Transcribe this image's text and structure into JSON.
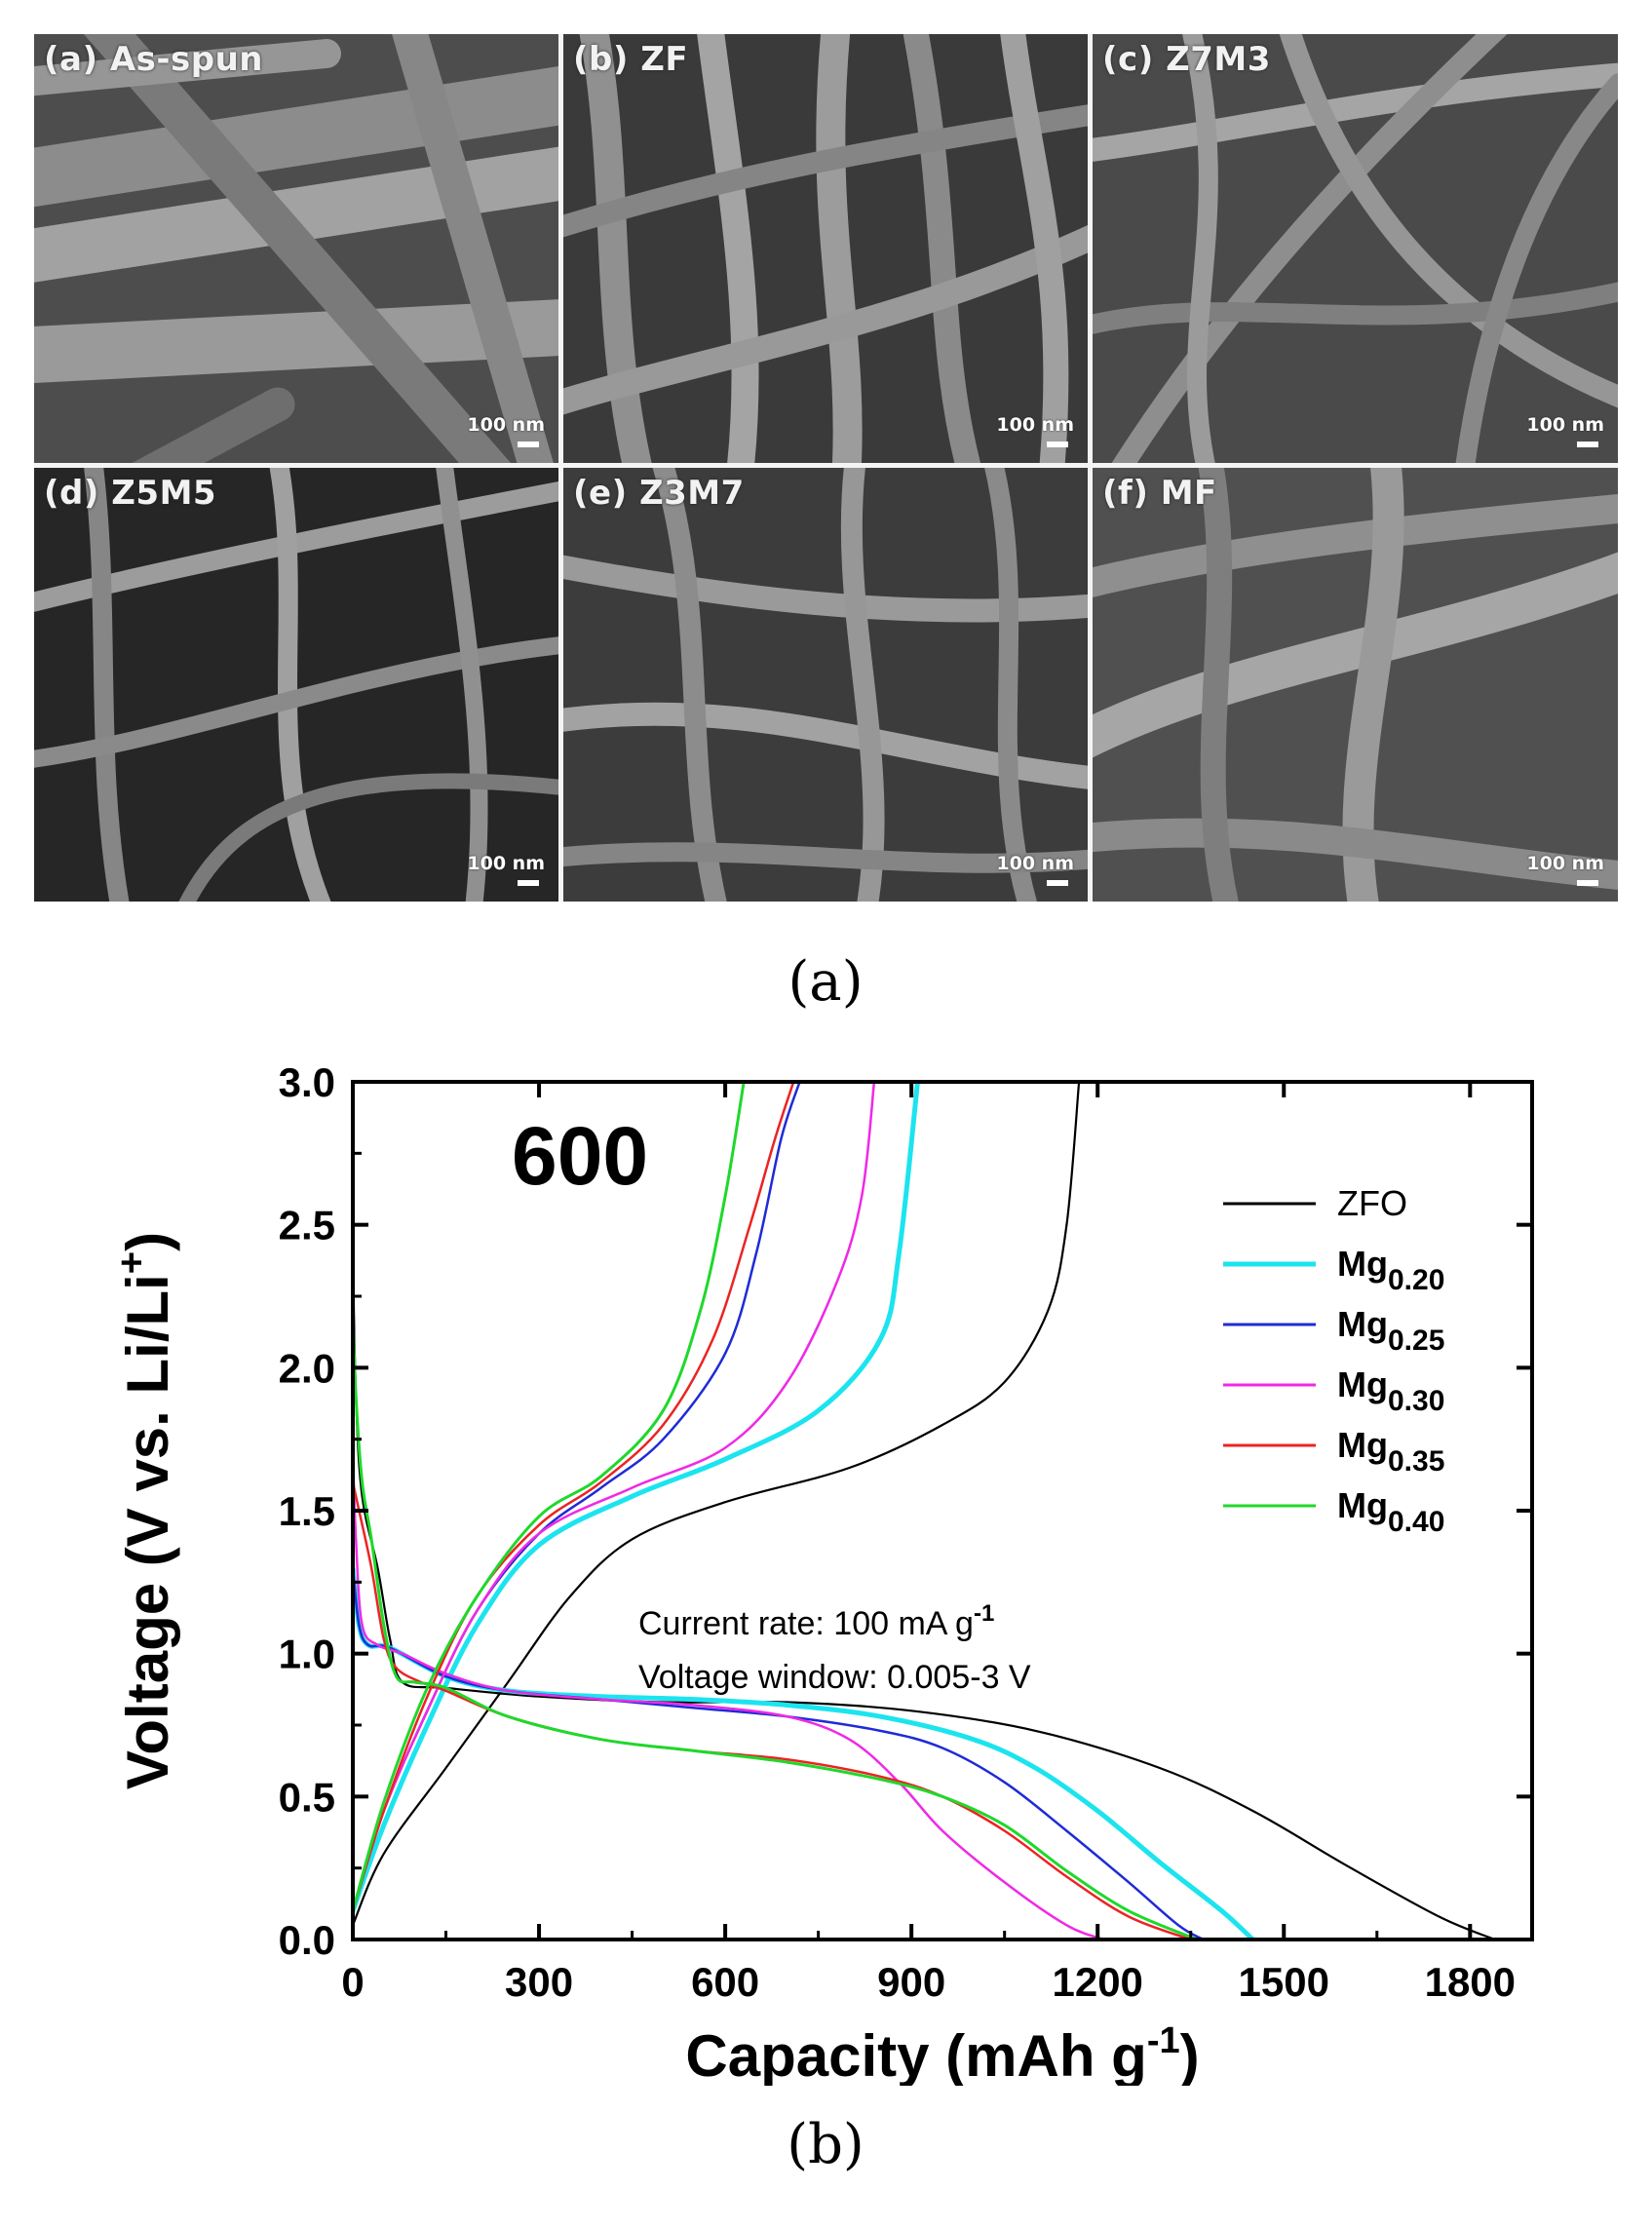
{
  "figure": {
    "caption_a": "(a)",
    "caption_b": "(b)"
  },
  "sem_panels": [
    {
      "label": "(a) As-spun",
      "scale": "100 nm"
    },
    {
      "label": "(b) ZF",
      "scale": "100 nm"
    },
    {
      "label": "(c) Z7M3",
      "scale": "100 nm"
    },
    {
      "label": "(d) Z5M5",
      "scale": "100 nm"
    },
    {
      "label": "(e) Z3M7",
      "scale": "100 nm"
    },
    {
      "label": "(f) MF",
      "scale": "100 nm"
    }
  ],
  "chart_data": {
    "type": "line",
    "title": "",
    "annotation_temperature": "600",
    "annotation_rate": "Current rate: 100 mA g",
    "annotation_rate_sup": "-1",
    "annotation_window": "Voltage window: 0.005-3 V",
    "xlabel": "Capacity (mAh g",
    "xlabel_sup": "-1",
    "xlabel_end": ")",
    "ylabel": "Voltage (V vs. Li/Li",
    "ylabel_sup": "+",
    "ylabel_end": ")",
    "xlim": [
      0,
      1900
    ],
    "ylim": [
      0,
      3.0
    ],
    "xticks": [
      0,
      300,
      600,
      900,
      1200,
      1500,
      1800
    ],
    "yticks": [
      0.0,
      0.5,
      1.0,
      1.5,
      2.0,
      2.5,
      3.0
    ],
    "legend_position": "right",
    "series": [
      {
        "name": "ZFO",
        "subscript": "",
        "color": "#000000",
        "width": 2.2,
        "discharge": [
          [
            0,
            2.4
          ],
          [
            5,
            1.9
          ],
          [
            15,
            1.55
          ],
          [
            40,
            1.3
          ],
          [
            60,
            1.05
          ],
          [
            80,
            0.9
          ],
          [
            150,
            0.88
          ],
          [
            300,
            0.85
          ],
          [
            500,
            0.83
          ],
          [
            700,
            0.83
          ],
          [
            900,
            0.8
          ],
          [
            1100,
            0.73
          ],
          [
            1300,
            0.6
          ],
          [
            1450,
            0.45
          ],
          [
            1600,
            0.26
          ],
          [
            1750,
            0.08
          ],
          [
            1840,
            0.0
          ]
        ],
        "charge": [
          [
            0,
            0.05
          ],
          [
            50,
            0.3
          ],
          [
            150,
            0.6
          ],
          [
            250,
            0.9
          ],
          [
            350,
            1.2
          ],
          [
            450,
            1.4
          ],
          [
            600,
            1.53
          ],
          [
            800,
            1.65
          ],
          [
            950,
            1.8
          ],
          [
            1050,
            1.95
          ],
          [
            1120,
            2.2
          ],
          [
            1150,
            2.5
          ],
          [
            1170,
            3.0
          ]
        ]
      },
      {
        "name": "Mg",
        "subscript": "0.20",
        "color": "#1ce4ef",
        "width": 5.0,
        "discharge": [
          [
            0,
            1.3
          ],
          [
            10,
            1.1
          ],
          [
            25,
            1.03
          ],
          [
            60,
            1.02
          ],
          [
            150,
            0.92
          ],
          [
            250,
            0.87
          ],
          [
            400,
            0.85
          ],
          [
            550,
            0.84
          ],
          [
            700,
            0.82
          ],
          [
            850,
            0.78
          ],
          [
            1000,
            0.7
          ],
          [
            1100,
            0.6
          ],
          [
            1200,
            0.45
          ],
          [
            1300,
            0.27
          ],
          [
            1400,
            0.1
          ],
          [
            1450,
            0.0
          ]
        ],
        "charge": [
          [
            0,
            0.1
          ],
          [
            50,
            0.4
          ],
          [
            120,
            0.75
          ],
          [
            200,
            1.1
          ],
          [
            300,
            1.38
          ],
          [
            450,
            1.55
          ],
          [
            600,
            1.68
          ],
          [
            750,
            1.85
          ],
          [
            850,
            2.1
          ],
          [
            880,
            2.4
          ],
          [
            910,
            3.0
          ]
        ]
      },
      {
        "name": "Mg",
        "subscript": "0.25",
        "color": "#1f2bd6",
        "width": 2.5,
        "discharge": [
          [
            0,
            1.3
          ],
          [
            10,
            1.1
          ],
          [
            25,
            1.03
          ],
          [
            60,
            1.02
          ],
          [
            150,
            0.92
          ],
          [
            250,
            0.87
          ],
          [
            400,
            0.84
          ],
          [
            550,
            0.81
          ],
          [
            700,
            0.78
          ],
          [
            850,
            0.73
          ],
          [
            950,
            0.67
          ],
          [
            1050,
            0.55
          ],
          [
            1150,
            0.38
          ],
          [
            1250,
            0.2
          ],
          [
            1330,
            0.05
          ],
          [
            1370,
            0.0
          ]
        ],
        "charge": [
          [
            0,
            0.1
          ],
          [
            50,
            0.45
          ],
          [
            120,
            0.8
          ],
          [
            200,
            1.15
          ],
          [
            300,
            1.42
          ],
          [
            400,
            1.58
          ],
          [
            500,
            1.75
          ],
          [
            600,
            2.05
          ],
          [
            650,
            2.4
          ],
          [
            690,
            2.8
          ],
          [
            720,
            3.0
          ]
        ]
      },
      {
        "name": "Mg",
        "subscript": "0.30",
        "color": "#ef29e6",
        "width": 2.5,
        "discharge": [
          [
            0,
            1.7
          ],
          [
            5,
            1.4
          ],
          [
            15,
            1.1
          ],
          [
            40,
            1.03
          ],
          [
            80,
            1.0
          ],
          [
            150,
            0.93
          ],
          [
            250,
            0.87
          ],
          [
            400,
            0.84
          ],
          [
            550,
            0.82
          ],
          [
            700,
            0.78
          ],
          [
            800,
            0.7
          ],
          [
            880,
            0.55
          ],
          [
            950,
            0.38
          ],
          [
            1050,
            0.2
          ],
          [
            1150,
            0.05
          ],
          [
            1210,
            0.0
          ]
        ],
        "charge": [
          [
            0,
            0.1
          ],
          [
            50,
            0.45
          ],
          [
            120,
            0.8
          ],
          [
            200,
            1.15
          ],
          [
            300,
            1.42
          ],
          [
            450,
            1.58
          ],
          [
            600,
            1.72
          ],
          [
            700,
            1.95
          ],
          [
            780,
            2.3
          ],
          [
            820,
            2.6
          ],
          [
            840,
            3.0
          ]
        ]
      },
      {
        "name": "Mg",
        "subscript": "0.35",
        "color": "#ec2323",
        "width": 2.5,
        "discharge": [
          [
            0,
            1.6
          ],
          [
            10,
            1.5
          ],
          [
            30,
            1.3
          ],
          [
            50,
            1.05
          ],
          [
            70,
            0.95
          ],
          [
            110,
            0.9
          ],
          [
            150,
            0.87
          ],
          [
            250,
            0.78
          ],
          [
            400,
            0.7
          ],
          [
            550,
            0.66
          ],
          [
            700,
            0.63
          ],
          [
            850,
            0.57
          ],
          [
            950,
            0.5
          ],
          [
            1050,
            0.38
          ],
          [
            1150,
            0.22
          ],
          [
            1250,
            0.08
          ],
          [
            1350,
            0.0
          ]
        ],
        "charge": [
          [
            0,
            0.1
          ],
          [
            50,
            0.45
          ],
          [
            120,
            0.85
          ],
          [
            200,
            1.2
          ],
          [
            300,
            1.45
          ],
          [
            400,
            1.6
          ],
          [
            500,
            1.8
          ],
          [
            580,
            2.1
          ],
          [
            640,
            2.5
          ],
          [
            680,
            2.8
          ],
          [
            710,
            3.0
          ]
        ]
      },
      {
        "name": "Mg",
        "subscript": "0.40",
        "color": "#1fd82b",
        "width": 3.0,
        "discharge": [
          [
            0,
            2.2
          ],
          [
            5,
            1.9
          ],
          [
            15,
            1.6
          ],
          [
            30,
            1.4
          ],
          [
            50,
            1.1
          ],
          [
            70,
            0.92
          ],
          [
            100,
            0.9
          ],
          [
            150,
            0.88
          ],
          [
            250,
            0.78
          ],
          [
            400,
            0.7
          ],
          [
            550,
            0.66
          ],
          [
            700,
            0.62
          ],
          [
            850,
            0.56
          ],
          [
            950,
            0.5
          ],
          [
            1050,
            0.4
          ],
          [
            1150,
            0.24
          ],
          [
            1250,
            0.1
          ],
          [
            1360,
            0.0
          ]
        ],
        "charge": [
          [
            0,
            0.1
          ],
          [
            50,
            0.48
          ],
          [
            120,
            0.88
          ],
          [
            200,
            1.2
          ],
          [
            300,
            1.48
          ],
          [
            400,
            1.62
          ],
          [
            500,
            1.85
          ],
          [
            560,
            2.2
          ],
          [
            600,
            2.6
          ],
          [
            630,
            3.0
          ]
        ]
      }
    ]
  }
}
